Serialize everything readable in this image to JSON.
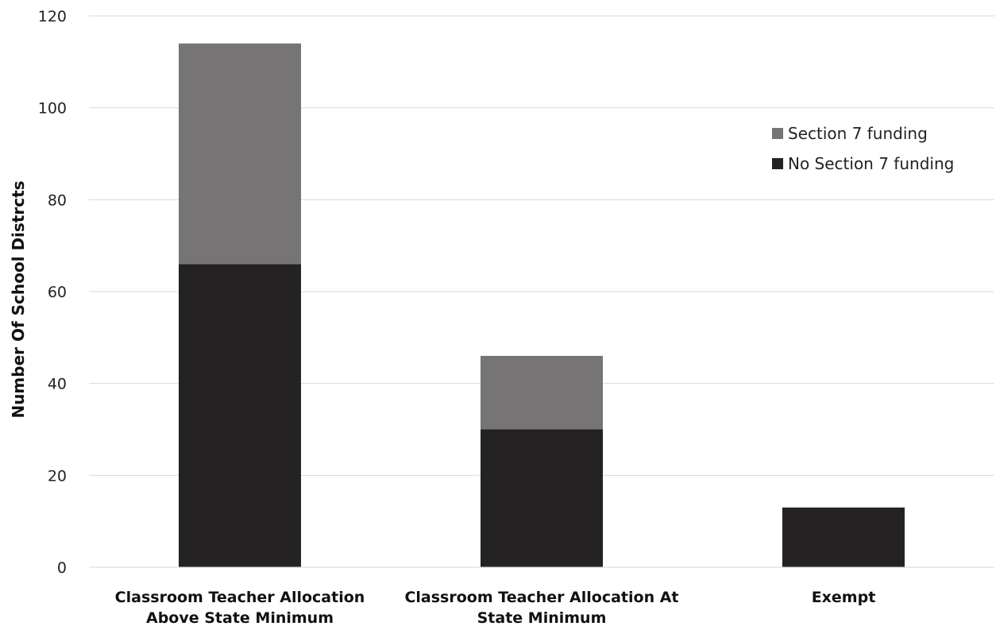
{
  "chart_data": {
    "type": "bar",
    "stacked": true,
    "title": "",
    "xlabel": "",
    "ylabel": "Number Of School Distrcts",
    "ylim": [
      0,
      120
    ],
    "yticks": [
      0,
      20,
      40,
      60,
      80,
      100,
      120
    ],
    "grid": true,
    "legend_position": "top-right",
    "categories": [
      [
        "Classroom Teacher Allocation",
        "Above State Minimum"
      ],
      [
        "Classroom Teacher Allocation At",
        "State Minimum"
      ],
      [
        "Exempt"
      ]
    ],
    "series": [
      {
        "name": "No Section 7 funding",
        "values": [
          66,
          30,
          13
        ],
        "color": "#252224"
      },
      {
        "name": "Section 7 funding",
        "values": [
          48,
          16,
          0
        ],
        "color": "#767475"
      }
    ],
    "legend_order": [
      1,
      0
    ]
  }
}
